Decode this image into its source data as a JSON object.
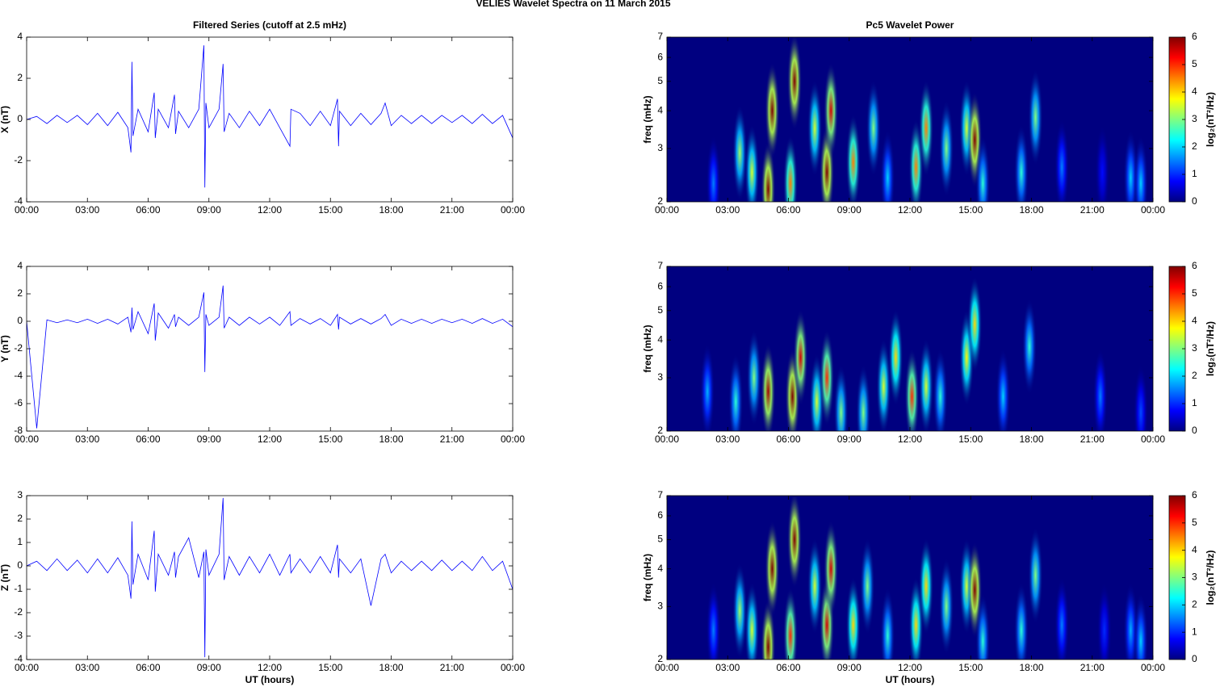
{
  "title": "VELIES Wavelet Spectra on 11 March     2015",
  "chart_data": [
    {
      "type": "line",
      "title": "Filtered Series (cutoff at 2.5 mHz)",
      "ylabel": "X (nT)",
      "xlim": [
        0,
        24
      ],
      "ylim": [
        -4,
        4
      ],
      "yticks": [
        -4,
        -2,
        0,
        2,
        4
      ],
      "xticks": [
        {
          "value": 0,
          "label": "00:00"
        },
        {
          "value": 3,
          "label": "03:00"
        },
        {
          "value": 6,
          "label": "06:00"
        },
        {
          "value": 9,
          "label": "09:00"
        },
        {
          "value": 12,
          "label": "12:00"
        },
        {
          "value": 15,
          "label": "15:00"
        },
        {
          "value": 18,
          "label": "18:00"
        },
        {
          "value": 21,
          "label": "21:00"
        },
        {
          "value": 24,
          "label": "00:00"
        }
      ],
      "series": [
        {
          "color": "#0000ff",
          "x": [
            0,
            0.5,
            1,
            1.5,
            2,
            2.5,
            3,
            3.5,
            4,
            4.5,
            5,
            5.15,
            5.2,
            5.25,
            5.5,
            6,
            6.3,
            6.35,
            6.5,
            7,
            7.3,
            7.35,
            7.5,
            8,
            8.5,
            8.75,
            8.8,
            8.85,
            9,
            9.5,
            9.7,
            9.75,
            10,
            10.5,
            11,
            11.5,
            12,
            12.5,
            13,
            13.05,
            13.5,
            14,
            14.5,
            15,
            15.35,
            15.4,
            15.45,
            16,
            16.5,
            17,
            17.5,
            17.7,
            18,
            18.5,
            19,
            19.5,
            20,
            20.5,
            21,
            21.5,
            22,
            22.5,
            23,
            23.5,
            24
          ],
          "values": [
            0,
            0.15,
            -0.2,
            0.2,
            -0.15,
            0.2,
            -0.25,
            0.3,
            -0.3,
            0.35,
            -0.4,
            -1.6,
            2.8,
            -0.8,
            0.5,
            -0.6,
            1.3,
            -0.9,
            0.5,
            -0.4,
            1.2,
            -0.7,
            0.4,
            -0.4,
            0.5,
            3.6,
            -3.3,
            0.8,
            -0.4,
            0.5,
            2.7,
            -0.6,
            0.3,
            -0.4,
            0.4,
            -0.3,
            0.5,
            -0.4,
            -1.3,
            0.5,
            0.3,
            -0.3,
            0.4,
            -0.3,
            1.0,
            -1.3,
            0.4,
            -0.3,
            0.3,
            -0.25,
            0.3,
            0.8,
            -0.3,
            0.2,
            -0.2,
            0.2,
            -0.2,
            0.2,
            -0.15,
            0.2,
            -0.2,
            0.25,
            -0.2,
            0.2,
            -0.9
          ]
        }
      ]
    },
    {
      "type": "heatmap",
      "title": "Pc5 Wavelet Power",
      "ylabel": "freq (mHz)",
      "log_y": true,
      "xlim": [
        0,
        24
      ],
      "ylim": [
        2,
        7
      ],
      "yticks": [
        2,
        3,
        4,
        5,
        6,
        7
      ],
      "xticks": [
        {
          "value": 0,
          "label": "00:00"
        },
        {
          "value": 3,
          "label": "03:00"
        },
        {
          "value": 6,
          "label": "06:00"
        },
        {
          "value": 9,
          "label": "09:00"
        },
        {
          "value": 12,
          "label": "12:00"
        },
        {
          "value": 15,
          "label": "15:00"
        },
        {
          "value": 18,
          "label": "18:00"
        },
        {
          "value": 21,
          "label": "21:00"
        },
        {
          "value": 24,
          "label": "00:00"
        }
      ],
      "colorbar_lim": [
        0,
        6
      ],
      "colorbar_ticks": [
        0,
        1,
        2,
        3,
        4,
        5,
        6
      ],
      "colorbar_label": "log₂(nT²/Hz)",
      "x": [
        2.3,
        3.6,
        4.2,
        5.0,
        5.2,
        6.1,
        6.3,
        7.3,
        7.9,
        8.1,
        9.2,
        10.2,
        10.9,
        12.3,
        12.8,
        13.8,
        14.8,
        15.2,
        15.6,
        17.5,
        18.2,
        19.5,
        21.5,
        22.9,
        23.4
      ],
      "freq": [
        2.3,
        2.9,
        2.5,
        2.2,
        4,
        2.3,
        5,
        3.5,
        2.5,
        4,
        2.7,
        3.5,
        2.4,
        2.6,
        3.5,
        3,
        3.5,
        3.2,
        2.3,
        2.5,
        3.8,
        2.6,
        2.5,
        2.4,
        2.3
      ],
      "values": [
        1.5,
        3.2,
        3.5,
        6,
        6,
        4.5,
        6,
        3.5,
        6,
        5.5,
        4.5,
        3,
        2,
        4.5,
        4.5,
        3,
        3.5,
        6,
        2.5,
        2.5,
        3,
        1.5,
        0.8,
        2,
        2
      ]
    },
    {
      "type": "line",
      "ylabel": "Y (nT)",
      "xlim": [
        0,
        24
      ],
      "ylim": [
        -8,
        4
      ],
      "yticks": [
        -8,
        -6,
        -4,
        -2,
        0,
        2,
        4
      ],
      "xticks": [
        {
          "value": 0,
          "label": "00:00"
        },
        {
          "value": 3,
          "label": "03:00"
        },
        {
          "value": 6,
          "label": "06:00"
        },
        {
          "value": 9,
          "label": "09:00"
        },
        {
          "value": 12,
          "label": "12:00"
        },
        {
          "value": 15,
          "label": "15:00"
        },
        {
          "value": 18,
          "label": "18:00"
        },
        {
          "value": 21,
          "label": "21:00"
        },
        {
          "value": 24,
          "label": "00:00"
        }
      ],
      "series": [
        {
          "color": "#0000ff",
          "x": [
            0,
            0.5,
            1,
            1.5,
            2,
            2.5,
            3,
            3.5,
            4,
            4.5,
            5,
            5.15,
            5.2,
            5.25,
            5.5,
            6,
            6.3,
            6.35,
            6.5,
            7,
            7.3,
            7.35,
            7.5,
            8,
            8.5,
            8.75,
            8.8,
            8.85,
            9,
            9.5,
            9.7,
            9.75,
            10,
            10.5,
            11,
            11.5,
            12,
            12.5,
            13,
            13.05,
            13.5,
            14,
            14.5,
            15,
            15.35,
            15.4,
            15.45,
            16,
            16.5,
            17,
            17.5,
            17.7,
            18,
            18.5,
            19,
            19.5,
            20,
            20.5,
            21,
            21.5,
            22,
            22.5,
            23,
            23.5,
            24
          ],
          "values": [
            0,
            -7.8,
            0.1,
            -0.1,
            0.1,
            -0.1,
            0.15,
            -0.15,
            0.15,
            -0.2,
            0.3,
            -0.8,
            1.0,
            -0.6,
            0.7,
            -0.9,
            1.3,
            -1.4,
            0.6,
            -0.5,
            0.5,
            -0.4,
            0.3,
            -0.3,
            0.3,
            2.1,
            -3.7,
            0.5,
            -0.3,
            0.3,
            2.6,
            -0.5,
            0.3,
            -0.3,
            0.3,
            -0.2,
            0.3,
            -0.3,
            0.7,
            -0.3,
            0.2,
            -0.2,
            0.2,
            -0.3,
            0.5,
            -0.6,
            0.3,
            -0.2,
            0.2,
            -0.2,
            0.2,
            0.5,
            -0.3,
            0.15,
            -0.15,
            0.15,
            -0.15,
            0.15,
            -0.1,
            0.15,
            -0.15,
            0.2,
            -0.15,
            0.15,
            -0.4
          ]
        }
      ]
    },
    {
      "type": "heatmap",
      "ylabel": "freq (mHz)",
      "log_y": true,
      "xlim": [
        0,
        24
      ],
      "ylim": [
        2,
        7
      ],
      "yticks": [
        2,
        3,
        4,
        5,
        6,
        7
      ],
      "xticks": [
        {
          "value": 0,
          "label": "00:00"
        },
        {
          "value": 3,
          "label": "03:00"
        },
        {
          "value": 6,
          "label": "06:00"
        },
        {
          "value": 9,
          "label": "09:00"
        },
        {
          "value": 12,
          "label": "12:00"
        },
        {
          "value": 15,
          "label": "15:00"
        },
        {
          "value": 18,
          "label": "18:00"
        },
        {
          "value": 21,
          "label": "21:00"
        },
        {
          "value": 24,
          "label": "00:00"
        }
      ],
      "colorbar_lim": [
        0,
        6
      ],
      "colorbar_ticks": [
        0,
        1,
        2,
        3,
        4,
        5,
        6
      ],
      "colorbar_label": "log₂(nT²/Hz)",
      "x": [
        2.0,
        3.4,
        4.3,
        5.0,
        6.2,
        6.6,
        7.4,
        7.9,
        8.6,
        9.7,
        10.7,
        11.3,
        12.1,
        12.8,
        13.5,
        14.8,
        15.2,
        16.6,
        17.9,
        21.4,
        23.4
      ],
      "freq": [
        2.7,
        2.5,
        3,
        2.7,
        2.6,
        3.5,
        2.5,
        3,
        2.3,
        2.3,
        2.8,
        3.5,
        2.6,
        2.8,
        2.6,
        3.5,
        4.5,
        2.6,
        3.8,
        2.6,
        2.3
      ],
      "values": [
        1.8,
        2.5,
        3,
        5.8,
        6,
        5.5,
        3.5,
        5,
        3,
        3,
        3.5,
        4,
        5,
        3.5,
        2.5,
        3.8,
        4,
        2,
        2.5,
        1.5,
        1.2
      ]
    },
    {
      "type": "line",
      "ylabel": "Z (nT)",
      "xlabel": "UT (hours)",
      "xlim": [
        0,
        24
      ],
      "ylim": [
        -4,
        3
      ],
      "yticks": [
        -4,
        -3,
        -2,
        -1,
        0,
        1,
        2,
        3
      ],
      "xticks": [
        {
          "value": 0,
          "label": "00:00"
        },
        {
          "value": 3,
          "label": "03:00"
        },
        {
          "value": 6,
          "label": "06:00"
        },
        {
          "value": 9,
          "label": "09:00"
        },
        {
          "value": 12,
          "label": "12:00"
        },
        {
          "value": 15,
          "label": "15:00"
        },
        {
          "value": 18,
          "label": "18:00"
        },
        {
          "value": 21,
          "label": "21:00"
        },
        {
          "value": 24,
          "label": "00:00"
        }
      ],
      "series": [
        {
          "color": "#0000ff",
          "x": [
            0,
            0.5,
            1,
            1.5,
            2,
            2.5,
            3,
            3.5,
            4,
            4.5,
            5,
            5.15,
            5.2,
            5.25,
            5.5,
            6,
            6.3,
            6.35,
            6.5,
            7,
            7.3,
            7.35,
            7.5,
            8,
            8.5,
            8.75,
            8.8,
            8.85,
            9,
            9.5,
            9.7,
            9.75,
            10,
            10.5,
            11,
            11.5,
            12,
            12.5,
            13,
            13.05,
            13.5,
            14,
            14.5,
            15,
            15.35,
            15.4,
            15.45,
            16,
            16.5,
            17,
            17.5,
            17.7,
            18,
            18.5,
            19,
            19.5,
            20,
            20.5,
            21,
            21.5,
            22,
            22.5,
            23,
            23.5,
            24
          ],
          "values": [
            0,
            0.2,
            -0.2,
            0.3,
            -0.2,
            0.25,
            -0.3,
            0.3,
            -0.3,
            0.35,
            -0.4,
            -1.4,
            1.9,
            -0.8,
            0.5,
            -0.6,
            1.5,
            -1.1,
            0.5,
            -0.4,
            0.6,
            -0.5,
            0.4,
            1.2,
            -0.5,
            0.6,
            -3.9,
            0.7,
            -0.4,
            0.5,
            2.9,
            -0.6,
            0.4,
            -0.4,
            0.4,
            -0.3,
            0.5,
            -0.4,
            0.5,
            -0.3,
            0.3,
            -0.3,
            0.4,
            -0.3,
            0.9,
            -0.5,
            0.3,
            -0.3,
            0.3,
            -1.7,
            0.3,
            0.5,
            -0.3,
            0.2,
            -0.2,
            0.2,
            -0.2,
            0.25,
            -0.2,
            0.2,
            -0.2,
            0.4,
            -0.2,
            0.2,
            -1.0
          ]
        }
      ]
    },
    {
      "type": "heatmap",
      "ylabel": "freq (mHz)",
      "xlabel": "UT (hours)",
      "log_y": true,
      "xlim": [
        0,
        24
      ],
      "ylim": [
        2,
        7
      ],
      "yticks": [
        2,
        3,
        4,
        5,
        6,
        7
      ],
      "xticks": [
        {
          "value": 0,
          "label": "00:00"
        },
        {
          "value": 3,
          "label": "03:00"
        },
        {
          "value": 6,
          "label": "06:00"
        },
        {
          "value": 9,
          "label": "09:00"
        },
        {
          "value": 12,
          "label": "12:00"
        },
        {
          "value": 15,
          "label": "15:00"
        },
        {
          "value": 18,
          "label": "18:00"
        },
        {
          "value": 21,
          "label": "21:00"
        },
        {
          "value": 24,
          "label": "00:00"
        }
      ],
      "colorbar_lim": [
        0,
        6
      ],
      "colorbar_ticks": [
        0,
        1,
        2,
        3,
        4,
        5,
        6
      ],
      "colorbar_label": "log₂(nT²/Hz)",
      "x": [
        2.3,
        3.6,
        4.2,
        5.0,
        5.2,
        6.1,
        6.3,
        7.3,
        7.9,
        8.1,
        9.2,
        9.9,
        10.9,
        12.3,
        12.8,
        13.8,
        14.8,
        15.2,
        15.6,
        17.5,
        18.2,
        19.5,
        21.6,
        22.9,
        23.4
      ],
      "freq": [
        2.5,
        2.9,
        2.5,
        2.2,
        4,
        2.4,
        5,
        3.5,
        2.6,
        4,
        2.6,
        3.5,
        2.4,
        2.6,
        3.5,
        3,
        3.5,
        3.4,
        2.3,
        2.5,
        3.8,
        2.6,
        2.5,
        2.5,
        2.3
      ],
      "values": [
        1.5,
        3.2,
        3.5,
        6,
        6,
        5,
        6,
        3.5,
        5.5,
        5.5,
        4,
        3,
        2.5,
        4,
        4,
        3,
        3.5,
        6,
        2.5,
        2.5,
        3,
        1.5,
        1,
        1.8,
        2
      ]
    }
  ]
}
